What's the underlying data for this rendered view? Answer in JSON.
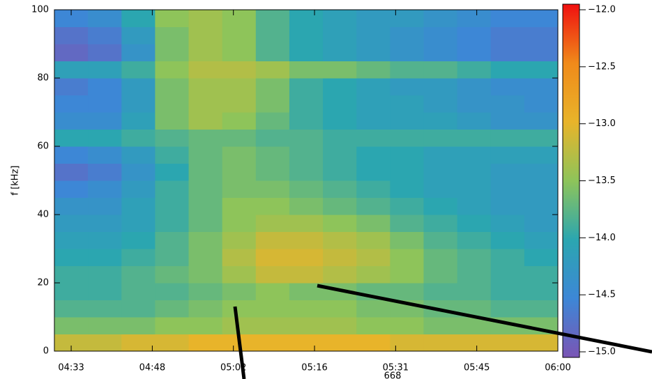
{
  "chart_data": {
    "type": "heatmap",
    "ylabel": "f [kHz]",
    "annotation": "668",
    "x": [
      273,
      279,
      285,
      291,
      297,
      303,
      309,
      315,
      321,
      327,
      333,
      339,
      345,
      351,
      357
    ],
    "y": [
      2.5,
      7.5,
      12.5,
      17.5,
      22.5,
      27.5,
      32.5,
      37.5,
      42.5,
      47.5,
      52.5,
      57.5,
      62.5,
      67.5,
      72.5,
      77.5,
      82.5,
      87.5,
      92.5,
      97.5
    ],
    "z": [
      [
        -13.2,
        -13.2,
        -13.1,
        -13.1,
        -13.0,
        -13.0,
        -13.0,
        -13.0,
        -13.0,
        -13.0,
        -13.1,
        -13.1,
        -13.1,
        -13.1,
        -13.1
      ],
      [
        -13.6,
        -13.6,
        -13.6,
        -13.5,
        -13.5,
        -13.4,
        -13.4,
        -13.4,
        -13.4,
        -13.5,
        -13.5,
        -13.6,
        -13.6,
        -13.6,
        -13.6
      ],
      [
        -13.8,
        -13.8,
        -13.8,
        -13.7,
        -13.6,
        -13.5,
        -13.5,
        -13.5,
        -13.5,
        -13.6,
        -13.6,
        -13.7,
        -13.7,
        -13.8,
        -13.8
      ],
      [
        -13.9,
        -13.9,
        -13.8,
        -13.8,
        -13.7,
        -13.6,
        -13.5,
        -13.6,
        -13.6,
        -13.7,
        -13.7,
        -13.8,
        -13.8,
        -13.9,
        -13.9
      ],
      [
        -13.9,
        -13.9,
        -13.8,
        -13.7,
        -13.6,
        -13.4,
        -13.2,
        -13.2,
        -13.3,
        -13.4,
        -13.5,
        -13.7,
        -13.8,
        -13.9,
        -13.9
      ],
      [
        -14.0,
        -14.0,
        -13.9,
        -13.8,
        -13.6,
        -13.3,
        -13.1,
        -13.1,
        -13.2,
        -13.3,
        -13.5,
        -13.7,
        -13.8,
        -13.9,
        -14.0
      ],
      [
        -14.1,
        -14.1,
        -14.0,
        -13.8,
        -13.6,
        -13.4,
        -13.2,
        -13.2,
        -13.3,
        -13.4,
        -13.6,
        -13.8,
        -13.9,
        -14.0,
        -14.1
      ],
      [
        -14.2,
        -14.2,
        -14.1,
        -13.9,
        -13.7,
        -13.5,
        -13.4,
        -13.4,
        -13.5,
        -13.6,
        -13.8,
        -13.9,
        -14.0,
        -14.1,
        -14.2
      ],
      [
        -14.3,
        -14.3,
        -14.1,
        -13.9,
        -13.7,
        -13.5,
        -13.5,
        -13.6,
        -13.7,
        -13.8,
        -13.9,
        -14.0,
        -14.1,
        -14.2,
        -14.2
      ],
      [
        -14.5,
        -14.4,
        -14.2,
        -13.9,
        -13.7,
        -13.6,
        -13.6,
        -13.7,
        -13.8,
        -13.9,
        -14.0,
        -14.1,
        -14.1,
        -14.2,
        -14.2
      ],
      [
        -14.7,
        -14.6,
        -14.3,
        -14.0,
        -13.7,
        -13.6,
        -13.7,
        -13.8,
        -13.9,
        -14.0,
        -14.0,
        -14.1,
        -14.1,
        -14.2,
        -14.2
      ],
      [
        -14.5,
        -14.4,
        -14.2,
        -13.9,
        -13.7,
        -13.6,
        -13.7,
        -13.8,
        -13.9,
        -14.0,
        -14.0,
        -14.1,
        -14.1,
        -14.1,
        -14.1
      ],
      [
        -14.0,
        -14.0,
        -13.9,
        -13.8,
        -13.7,
        -13.7,
        -13.8,
        -13.8,
        -13.9,
        -13.9,
        -13.9,
        -13.9,
        -13.9,
        -13.9,
        -13.9
      ],
      [
        -14.4,
        -14.4,
        -14.1,
        -13.6,
        -13.4,
        -13.5,
        -13.7,
        -13.9,
        -14.0,
        -14.1,
        -14.1,
        -14.1,
        -14.2,
        -14.3,
        -14.3
      ],
      [
        -14.5,
        -14.5,
        -14.2,
        -13.6,
        -13.4,
        -13.4,
        -13.6,
        -13.9,
        -14.0,
        -14.1,
        -14.1,
        -14.2,
        -14.3,
        -14.3,
        -14.4
      ],
      [
        -14.6,
        -14.5,
        -14.2,
        -13.6,
        -13.4,
        -13.4,
        -13.6,
        -13.9,
        -14.0,
        -14.1,
        -14.2,
        -14.2,
        -14.3,
        -14.4,
        -14.4
      ],
      [
        -14.1,
        -14.1,
        -13.9,
        -13.5,
        -13.3,
        -13.3,
        -13.4,
        -13.6,
        -13.6,
        -13.7,
        -13.8,
        -13.8,
        -13.9,
        -14.0,
        -14.0
      ],
      [
        -14.8,
        -14.7,
        -14.3,
        -13.6,
        -13.4,
        -13.5,
        -13.8,
        -14.0,
        -14.1,
        -14.2,
        -14.3,
        -14.4,
        -14.5,
        -14.6,
        -14.6
      ],
      [
        -14.7,
        -14.6,
        -14.2,
        -13.6,
        -13.4,
        -13.5,
        -13.8,
        -14.0,
        -14.1,
        -14.2,
        -14.3,
        -14.4,
        -14.5,
        -14.6,
        -14.6
      ],
      [
        -14.5,
        -14.4,
        -14.0,
        -13.5,
        -13.4,
        -13.5,
        -13.8,
        -14.0,
        -14.1,
        -14.2,
        -14.2,
        -14.3,
        -14.4,
        -14.5,
        -14.5
      ]
    ],
    "xlim": [
      270,
      360
    ],
    "xticks": [
      {
        "value": 273,
        "label": "04:33"
      },
      {
        "value": 287.5,
        "label": "04:48"
      },
      {
        "value": 302,
        "label": "05:02"
      },
      {
        "value": 316.5,
        "label": "05:16"
      },
      {
        "value": 331,
        "label": "05:31"
      },
      {
        "value": 345.5,
        "label": "05:45"
      },
      {
        "value": 360,
        "label": "06:00"
      }
    ],
    "ylim": [
      0,
      100
    ],
    "yticks": [
      0,
      20,
      40,
      60,
      80,
      100
    ],
    "clim": [
      -15,
      -12
    ],
    "cticks": [
      {
        "value": -12,
        "label": "−12.0"
      },
      {
        "value": -12.5,
        "label": "−12.5"
      },
      {
        "value": -13,
        "label": "−13.0"
      },
      {
        "value": -13.5,
        "label": "−13.5"
      },
      {
        "value": -14,
        "label": "−14.0"
      },
      {
        "value": -14.5,
        "label": "−14.5"
      },
      {
        "value": -15,
        "label": "−15.0"
      }
    ],
    "colors": [
      "#7a55b5",
      "#3d87d6",
      "#2ba6b0",
      "#8ec45a",
      "#e8b42a",
      "#f08a1a",
      "#f01010"
    ]
  }
}
